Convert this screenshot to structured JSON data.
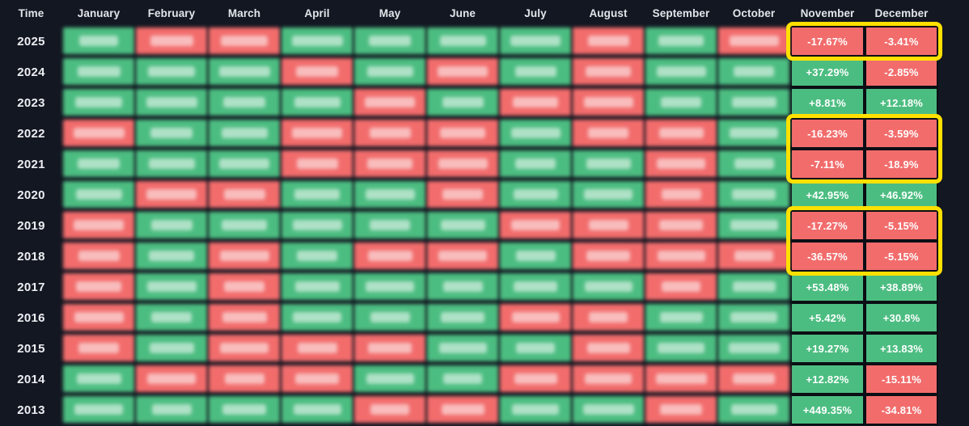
{
  "chart_data": {
    "type": "heatmap",
    "corner_label": "Time",
    "columns": [
      "January",
      "February",
      "March",
      "April",
      "May",
      "June",
      "July",
      "August",
      "September",
      "October",
      "November",
      "December"
    ],
    "blurred_months": [
      "January",
      "February",
      "March",
      "April",
      "May",
      "June",
      "July",
      "August",
      "September",
      "October"
    ],
    "rows": [
      {
        "year": "2025",
        "monthly_signs": [
          "up",
          "down",
          "down",
          "up",
          "up",
          "up",
          "up",
          "down",
          "up",
          "down"
        ],
        "november": "-17.67%",
        "december": "-3.41%"
      },
      {
        "year": "2024",
        "monthly_signs": [
          "up",
          "up",
          "up",
          "down",
          "up",
          "down",
          "up",
          "down",
          "up",
          "up"
        ],
        "november": "+37.29%",
        "december": "-2.85%"
      },
      {
        "year": "2023",
        "monthly_signs": [
          "up",
          "up",
          "up",
          "up",
          "down",
          "up",
          "down",
          "down",
          "up",
          "up"
        ],
        "november": "+8.81%",
        "december": "+12.18%"
      },
      {
        "year": "2022",
        "monthly_signs": [
          "down",
          "up",
          "up",
          "down",
          "down",
          "down",
          "up",
          "down",
          "down",
          "up"
        ],
        "november": "-16.23%",
        "december": "-3.59%"
      },
      {
        "year": "2021",
        "monthly_signs": [
          "up",
          "up",
          "up",
          "down",
          "down",
          "down",
          "up",
          "up",
          "down",
          "up"
        ],
        "november": "-7.11%",
        "december": "-18.9%"
      },
      {
        "year": "2020",
        "monthly_signs": [
          "up",
          "down",
          "down",
          "up",
          "up",
          "down",
          "up",
          "up",
          "down",
          "up"
        ],
        "november": "+42.95%",
        "december": "+46.92%"
      },
      {
        "year": "2019",
        "monthly_signs": [
          "down",
          "up",
          "up",
          "up",
          "up",
          "up",
          "down",
          "down",
          "down",
          "up"
        ],
        "november": "-17.27%",
        "december": "-5.15%"
      },
      {
        "year": "2018",
        "monthly_signs": [
          "down",
          "up",
          "down",
          "up",
          "down",
          "down",
          "up",
          "down",
          "down",
          "down"
        ],
        "november": "-36.57%",
        "december": "-5.15%"
      },
      {
        "year": "2017",
        "monthly_signs": [
          "down",
          "up",
          "down",
          "up",
          "up",
          "up",
          "up",
          "up",
          "down",
          "up"
        ],
        "november": "+53.48%",
        "december": "+38.89%"
      },
      {
        "year": "2016",
        "monthly_signs": [
          "down",
          "up",
          "down",
          "up",
          "up",
          "up",
          "down",
          "down",
          "up",
          "up"
        ],
        "november": "+5.42%",
        "december": "+30.8%"
      },
      {
        "year": "2015",
        "monthly_signs": [
          "down",
          "up",
          "down",
          "down",
          "down",
          "up",
          "up",
          "down",
          "up",
          "up"
        ],
        "november": "+19.27%",
        "december": "+13.83%"
      },
      {
        "year": "2014",
        "monthly_signs": [
          "up",
          "down",
          "down",
          "down",
          "up",
          "up",
          "down",
          "down",
          "down",
          "down"
        ],
        "november": "+12.82%",
        "december": "-15.11%"
      },
      {
        "year": "2013",
        "monthly_signs": [
          "up",
          "up",
          "up",
          "up",
          "down",
          "down",
          "up",
          "up",
          "down",
          "up"
        ],
        "november": "+449.35%",
        "december": "-34.81%"
      }
    ],
    "highlight_groups": [
      [
        "2025"
      ],
      [
        "2022",
        "2021"
      ],
      [
        "2019",
        "2018"
      ]
    ],
    "colors": {
      "up": "#4cbd81",
      "down": "#f26c6c",
      "highlight": "#ffe000",
      "background": "#131722",
      "cell_border": "#0b0e15",
      "value_text": "#ffffff",
      "header_text": "#e2e6ea",
      "year_text": "#eceef2"
    }
  }
}
